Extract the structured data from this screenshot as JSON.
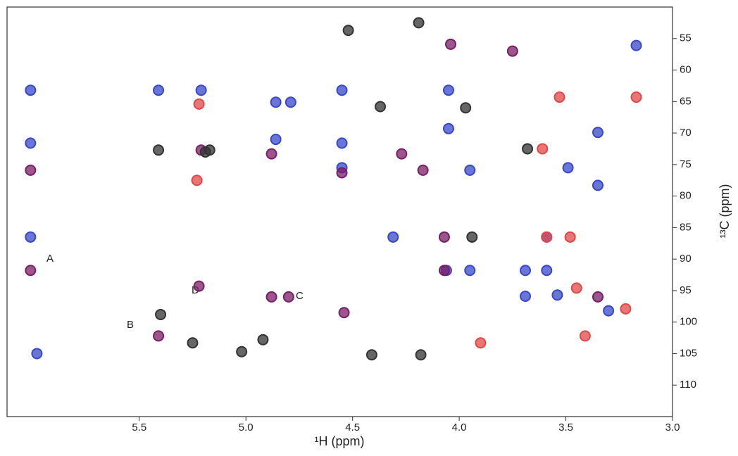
{
  "chart_data": {
    "type": "scatter",
    "x_label": "¹H (ppm)",
    "y_label": "¹³C (ppm)",
    "xlim": [
      6.12,
      3.0
    ],
    "ylim": [
      50,
      115
    ],
    "xticks": [
      5.5,
      {
        "value": 5,
        "label": "5.0"
      },
      4.5,
      {
        "value": 4,
        "label": "4.0"
      },
      3.5,
      {
        "value": 3,
        "label": "3.0"
      }
    ],
    "yticks": [
      55,
      60,
      65,
      70,
      75,
      80,
      85,
      90,
      95,
      100,
      105,
      110
    ],
    "annotations": [
      "A",
      "B",
      "C",
      "D"
    ],
    "series": [
      {
        "color": "#3848c8",
        "x": [
          6.01,
          6.01,
          6.01,
          5.98,
          5.41,
          5.21,
          4.86,
          4.79,
          4.86,
          4.55,
          4.55,
          4.05,
          4.05,
          3.95,
          4.31,
          3.95,
          4.06,
          3.69,
          3.59,
          3.59,
          3.69,
          3.54,
          3.35,
          3.17,
          3.3,
          4.55,
          3.35,
          3.49
        ],
        "values": [
          63.2,
          71.6,
          86.5,
          105.0,
          63.2,
          63.2,
          65.1,
          65.1,
          71.0,
          63.2,
          71.6,
          63.2,
          69.3,
          75.9,
          86.5,
          91.8,
          91.8,
          91.8,
          91.8,
          86.5,
          95.9,
          95.7,
          69.9,
          56.1,
          98.2,
          75.5,
          78.3,
          75.5
        ]
      },
      {
        "color": "#7a1e66",
        "x": [
          6.01,
          6.01,
          5.41,
          5.21,
          4.88,
          4.88,
          4.8,
          4.55,
          4.07,
          4.07,
          4.17,
          4.27,
          4.04,
          3.75,
          4.54,
          5.22,
          3.35
        ],
        "values": [
          75.9,
          91.8,
          102.2,
          72.7,
          73.3,
          96.0,
          96.0,
          76.3,
          86.5,
          91.8,
          75.9,
          73.3,
          55.9,
          57.0,
          98.5,
          94.3,
          96.0
        ]
      },
      {
        "color": "#333333",
        "x": [
          5.41,
          5.19,
          5.25,
          3.94,
          4.18,
          4.41,
          5.02,
          4.92,
          5.4,
          5.17,
          4.19,
          4.52,
          3.68,
          4.37,
          3.97
        ],
        "values": [
          72.7,
          73.0,
          103.3,
          86.5,
          105.2,
          105.2,
          104.7,
          102.8,
          98.8,
          72.7,
          52.5,
          53.7,
          72.5,
          65.8,
          66.0
        ]
      },
      {
        "color": "#e04848",
        "x": [
          5.22,
          5.23,
          3.59,
          3.48,
          3.22,
          3.41,
          3.9,
          3.45,
          3.61,
          3.53,
          3.17
        ],
        "values": [
          65.4,
          77.5,
          86.5,
          86.5,
          97.9,
          102.2,
          103.3,
          94.6,
          72.5,
          64.3,
          64.3
        ]
      }
    ]
  }
}
